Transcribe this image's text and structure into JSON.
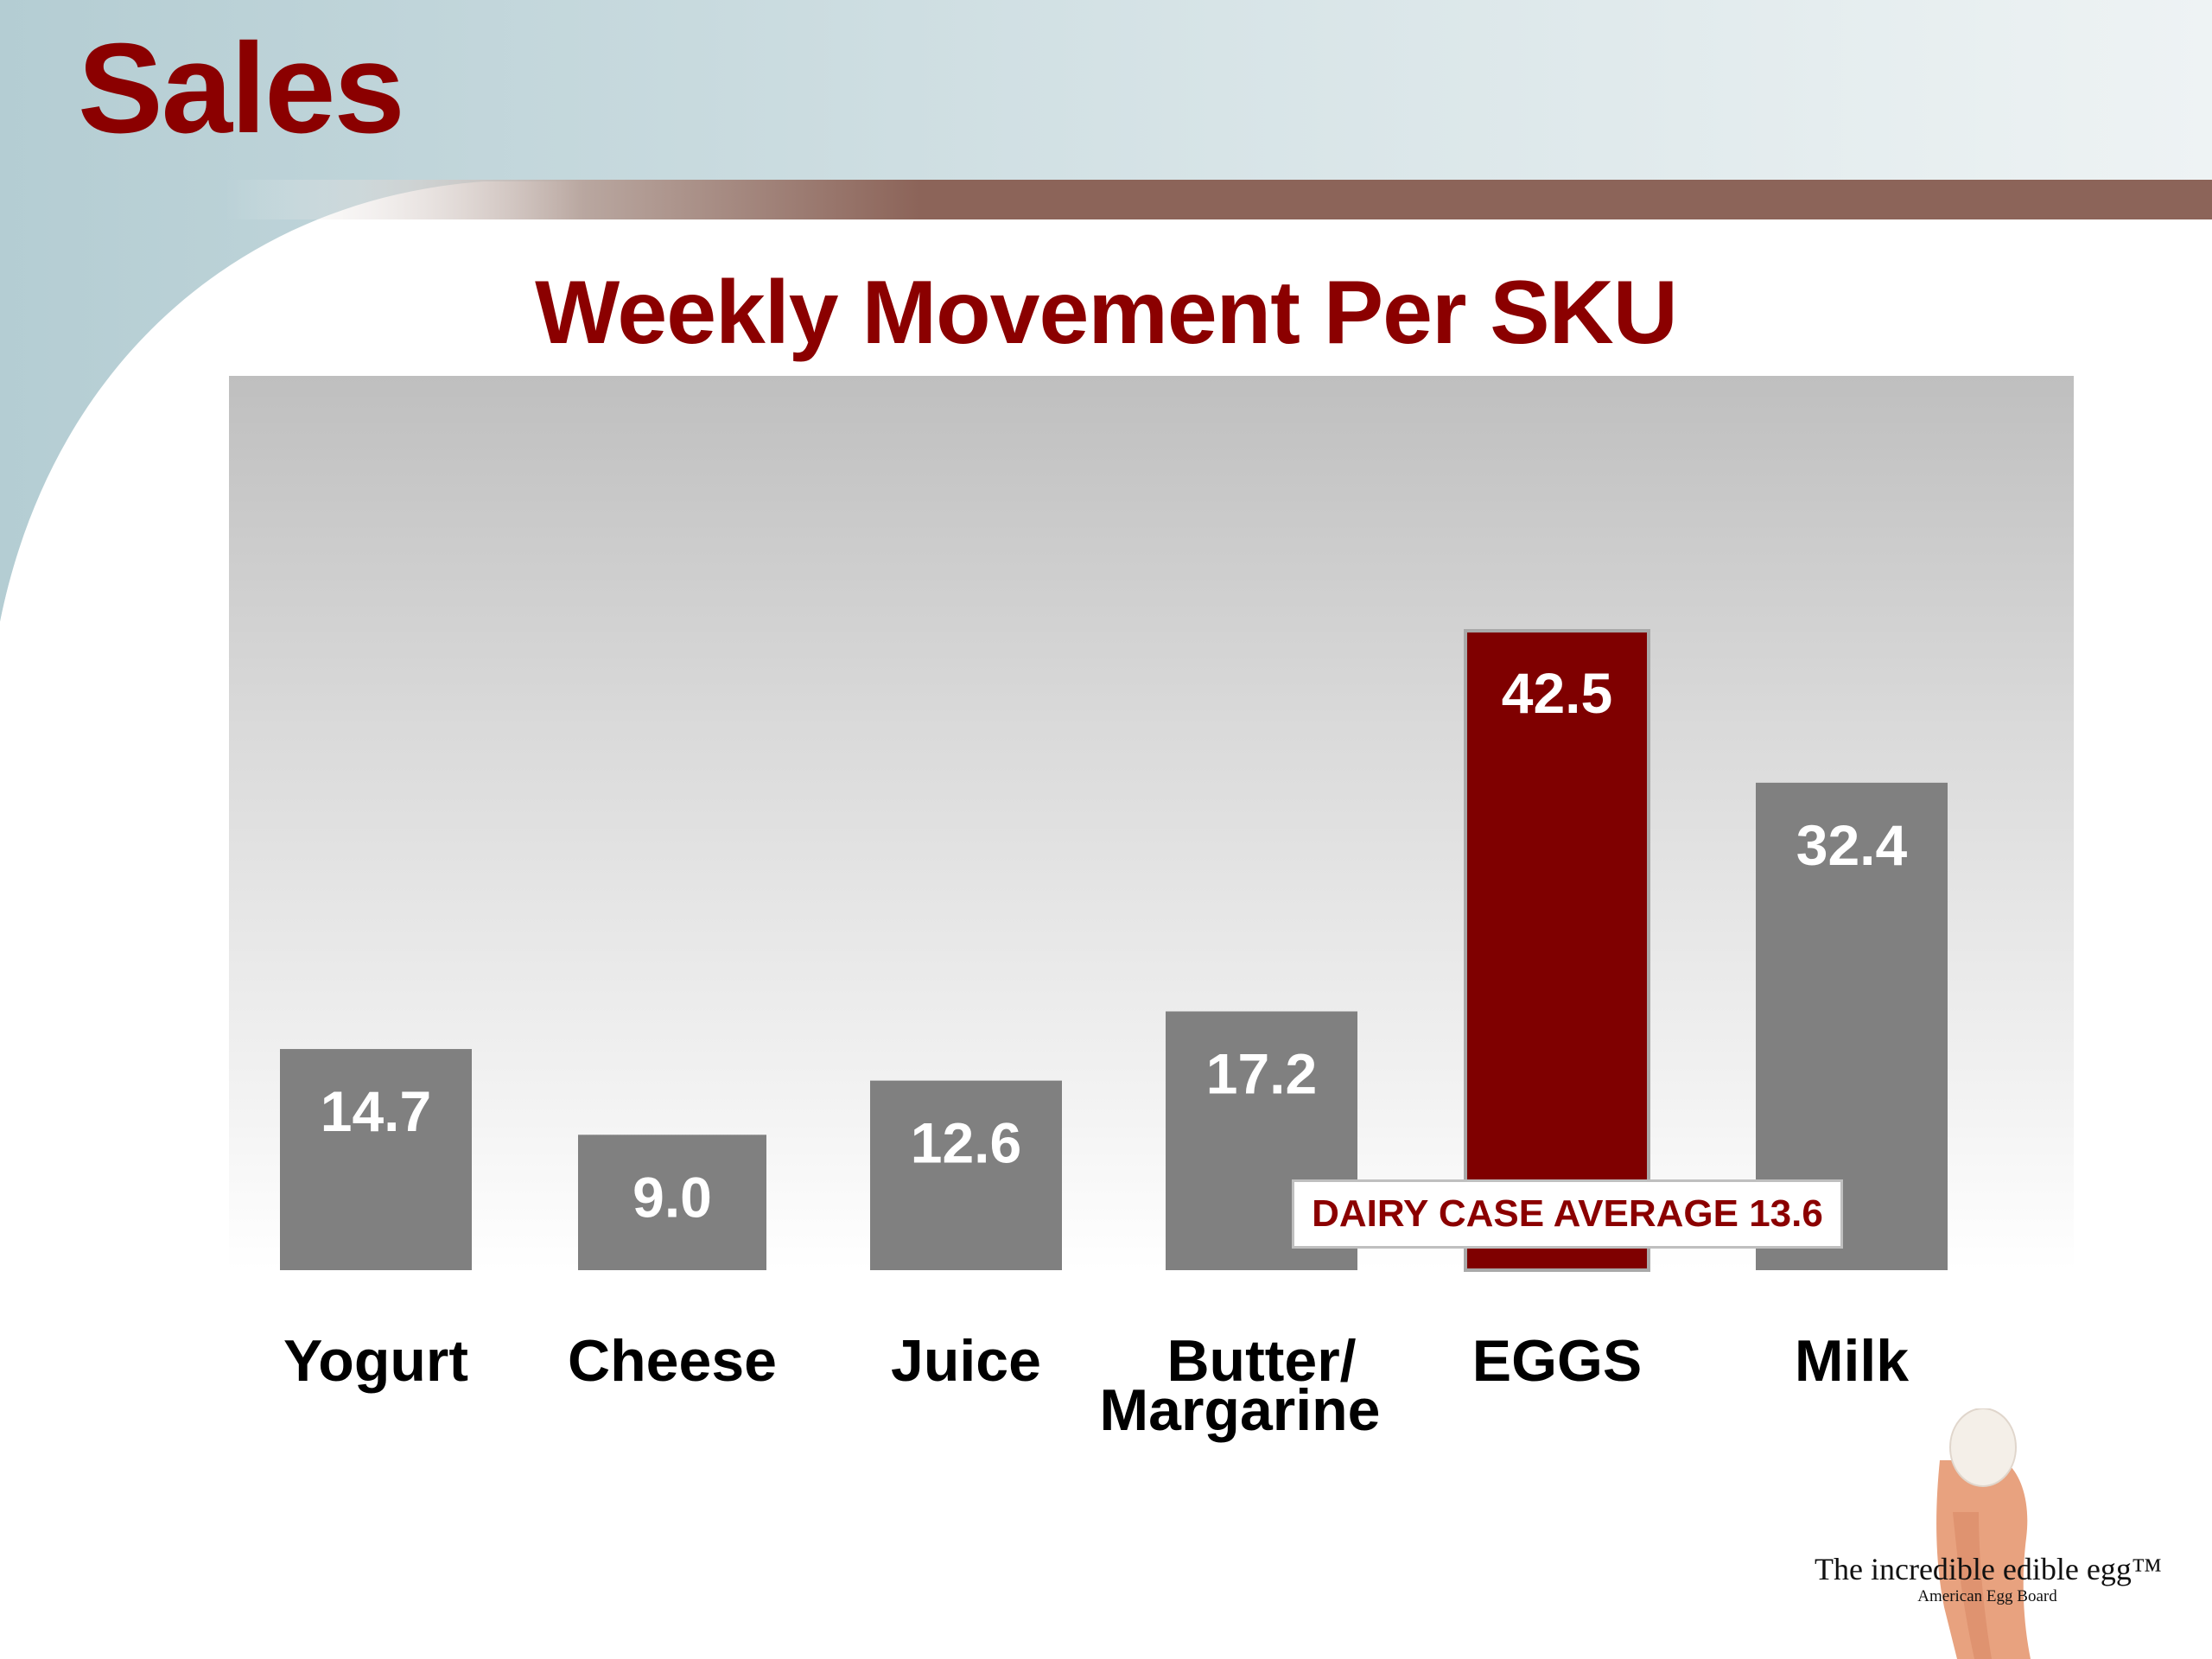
{
  "slide": {
    "title": "Sales"
  },
  "colors": {
    "title_red": "#8b0000",
    "bar_gray": "#808080",
    "bar_highlight": "#7f0000",
    "header_band_left": "#b9d1d6",
    "accent_stripe": "#8c6459"
  },
  "chart_data": {
    "type": "bar",
    "title": "Weekly Movement Per SKU",
    "xlabel": "",
    "ylabel": "",
    "ylim": [
      0,
      50
    ],
    "grid": false,
    "legend": "none",
    "categories": [
      "Yogurt",
      "Cheese",
      "Juice",
      "Butter/\nMargarine",
      "EGGS",
      "Milk"
    ],
    "values": [
      14.7,
      9.0,
      12.6,
      17.2,
      42.5,
      32.4
    ],
    "value_labels": [
      "14.7",
      "9.0",
      "12.6",
      "17.2",
      "42.5",
      "32.4"
    ],
    "highlight_category": "EGGS",
    "annotation": {
      "text": "DAIRY CASE AVERAGE 13.6",
      "value": 13.6
    }
  },
  "logo": {
    "name": "egg-in-hand-logo",
    "text": "The incredible edible egg™",
    "subtext": "American Egg Board"
  }
}
